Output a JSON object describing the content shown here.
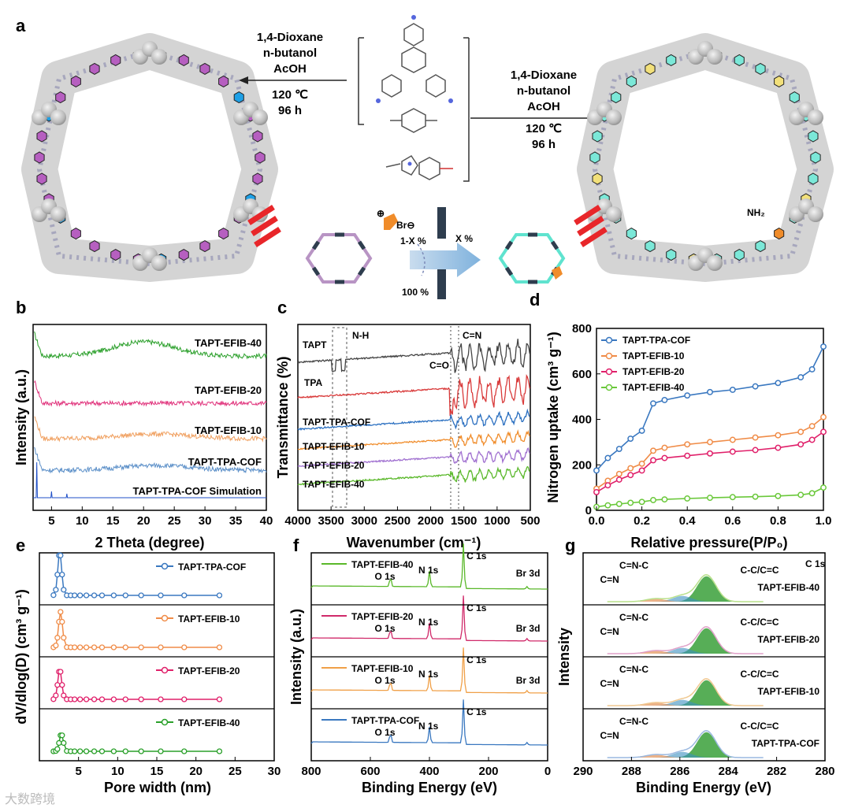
{
  "panels": {
    "a": "a",
    "b": "b",
    "c": "c",
    "d": "d",
    "e": "e",
    "f": "f",
    "g": "g"
  },
  "scheme": {
    "left_conditions": [
      "1,4-Dioxane",
      "n-butanol",
      "AcOH",
      "120 ℃",
      "96 h"
    ],
    "right_conditions": [
      "1,4-Dioxane",
      "n-butanol",
      "AcOH",
      "120 ℃",
      "96 h"
    ],
    "ratio_top": "1-X %",
    "ratio_right": "X %",
    "ratio_bottom": "100 %",
    "ion_plus": "⊕",
    "ion_minus": "Br⊖",
    "nh2": "NH₂",
    "colors": {
      "purple": "#b65fc0",
      "blue": "#1ea0e6",
      "cyan": "#7be8d8",
      "yellow": "#f2e07a",
      "orange": "#f08c2a",
      "red": "#e8262a"
    }
  },
  "chart_data": [
    {
      "panel": "b",
      "type": "line",
      "xlabel": "2 Theta (degree)",
      "ylabel": "Intensity (a.u.)",
      "xlim": [
        2,
        40
      ],
      "xticks": [
        5,
        10,
        15,
        20,
        25,
        30,
        35,
        40
      ],
      "series": [
        {
          "name": "TAPT-EFIB-40",
          "color": "#2ca02c"
        },
        {
          "name": "TAPT-EFIB-20",
          "color": "#e0307a"
        },
        {
          "name": "TAPT-EFIB-10",
          "color": "#f0a060"
        },
        {
          "name": "TAPT-TPA-COF",
          "color": "#5b8fc8"
        },
        {
          "name": "TAPT-TPA-COF Simulation",
          "color": "#1f4fc8"
        }
      ]
    },
    {
      "panel": "c",
      "type": "line",
      "xlabel": "Wavenumber (cm⁻¹)",
      "ylabel": "Transmittance (%)",
      "xlim": [
        4000,
        500
      ],
      "xticks": [
        4000,
        3500,
        3000,
        2500,
        2000,
        1500,
        1000,
        500
      ],
      "annotations": [
        "N-H",
        "C=O",
        "C=N"
      ],
      "series": [
        {
          "name": "TAPT",
          "color": "#444444"
        },
        {
          "name": "TPA",
          "color": "#d93a3a"
        },
        {
          "name": "TAPT-TPA-COF",
          "color": "#2a6fc0"
        },
        {
          "name": "TAPT-EFIB-10",
          "color": "#f08c2a"
        },
        {
          "name": "TAPT-EFIB-20",
          "color": "#a070d0"
        },
        {
          "name": "TAPT-EFIB-40",
          "color": "#5ab82a"
        }
      ]
    },
    {
      "panel": "d",
      "type": "line",
      "xlabel": "Relative pressure(P/P₀)",
      "ylabel": "Nitrogen uptake (cm³ g⁻¹)",
      "xlim": [
        0,
        1.0
      ],
      "ylim": [
        0,
        800
      ],
      "xticks": [
        "0.0",
        "0.2",
        "0.4",
        "0.6",
        "0.8",
        "1.0"
      ],
      "yticks": [
        "0",
        "200",
        "400",
        "600",
        "800"
      ],
      "series": [
        {
          "name": "TAPT-TPA-COF",
          "color": "#3a78c0",
          "x": [
            0.0,
            0.05,
            0.1,
            0.15,
            0.2,
            0.25,
            0.3,
            0.4,
            0.5,
            0.6,
            0.7,
            0.8,
            0.9,
            0.95,
            1.0
          ],
          "y": [
            175,
            230,
            270,
            315,
            350,
            470,
            485,
            505,
            520,
            530,
            545,
            560,
            585,
            620,
            720
          ]
        },
        {
          "name": "TAPT-EFIB-10",
          "color": "#f08c48",
          "x": [
            0.0,
            0.05,
            0.1,
            0.15,
            0.2,
            0.25,
            0.3,
            0.4,
            0.5,
            0.6,
            0.7,
            0.8,
            0.9,
            0.95,
            1.0
          ],
          "y": [
            95,
            130,
            160,
            185,
            205,
            262,
            275,
            290,
            300,
            310,
            320,
            330,
            345,
            370,
            410
          ]
        },
        {
          "name": "TAPT-EFIB-20",
          "color": "#e0206a",
          "x": [
            0.0,
            0.05,
            0.1,
            0.15,
            0.2,
            0.25,
            0.3,
            0.4,
            0.5,
            0.6,
            0.7,
            0.8,
            0.9,
            0.95,
            1.0
          ],
          "y": [
            80,
            110,
            135,
            155,
            175,
            220,
            230,
            240,
            250,
            258,
            265,
            275,
            290,
            310,
            345
          ]
        },
        {
          "name": "TAPT-EFIB-40",
          "color": "#6ac83a",
          "x": [
            0.0,
            0.05,
            0.1,
            0.15,
            0.2,
            0.25,
            0.3,
            0.4,
            0.5,
            0.6,
            0.7,
            0.8,
            0.9,
            0.95,
            1.0
          ],
          "y": [
            15,
            22,
            28,
            33,
            37,
            45,
            48,
            52,
            55,
            58,
            60,
            63,
            68,
            75,
            100
          ]
        }
      ]
    },
    {
      "panel": "e",
      "type": "line",
      "xlabel": "Pore width (nm)",
      "ylabel": "dV/dlog(D) (cm³ g⁻¹)",
      "xlim": [
        0,
        30
      ],
      "xticks": [
        5,
        10,
        15,
        20,
        25,
        30
      ],
      "series": [
        {
          "name": "TAPT-TPA-COF",
          "color": "#3a78c0"
        },
        {
          "name": "TAPT-EFIB-10",
          "color": "#f08c48"
        },
        {
          "name": "TAPT-EFIB-20",
          "color": "#e0206a"
        },
        {
          "name": "TAPT-EFIB-40",
          "color": "#2aa02a"
        }
      ]
    },
    {
      "panel": "f",
      "type": "line",
      "xlabel": "Binding Energy (eV)",
      "ylabel": "Intensity (a.u.)",
      "xlim": [
        800,
        0
      ],
      "xticks": [
        800,
        600,
        400,
        200,
        0
      ],
      "peak_labels": [
        "O 1s",
        "N 1s",
        "C 1s",
        "Br 3d"
      ],
      "series": [
        {
          "name": "TAPT-EFIB-40",
          "color": "#5ab82a"
        },
        {
          "name": "TAPT-EFIB-20",
          "color": "#d02a6a"
        },
        {
          "name": "TAPT-EFIB-10",
          "color": "#f0a048"
        },
        {
          "name": "TAPT-TPA-COF",
          "color": "#3a78c0"
        }
      ]
    },
    {
      "panel": "g",
      "type": "line",
      "xlabel": "Binding Energy (eV)",
      "ylabel": "Intensity",
      "xlim": [
        290,
        280
      ],
      "xticks": [
        290,
        288,
        286,
        284,
        282,
        280
      ],
      "core_level": "C 1s",
      "peak_labels": [
        "C=N",
        "C=N-C",
        "C-C/C=C"
      ],
      "samples": [
        "TAPT-EFIB-40",
        "TAPT-EFIB-20",
        "TAPT-EFIB-10",
        "TAPT-TPA-COF"
      ]
    }
  ],
  "watermark": "大数跨境"
}
